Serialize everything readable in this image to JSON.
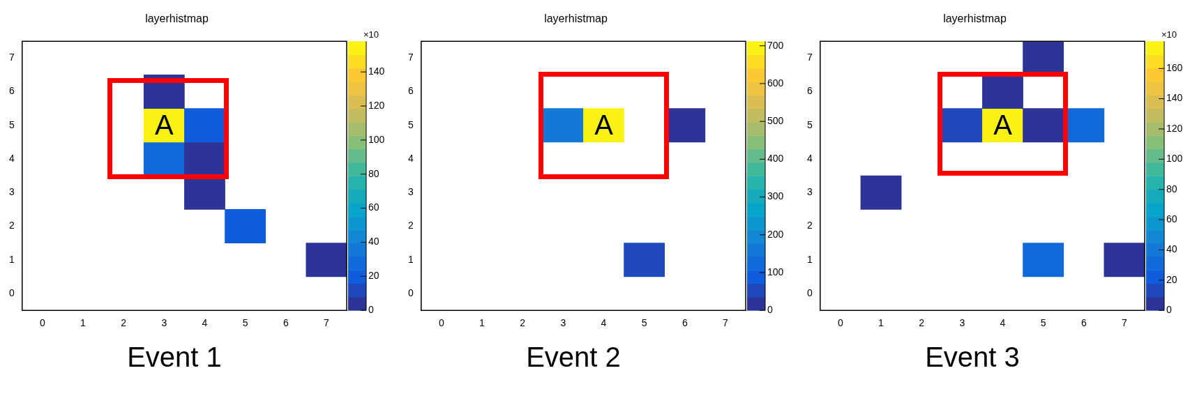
{
  "chart_data": [
    {
      "type": "heatmap",
      "title": "layerhistmap",
      "categories": [
        "0",
        "1",
        "2",
        "3",
        "4",
        "5",
        "6",
        "7"
      ],
      "y_categories": [
        "7",
        "6",
        "5",
        "4",
        "3",
        "2",
        "1",
        "0"
      ],
      "cells": [
        [
          null,
          null,
          null,
          null,
          null,
          null,
          null,
          null
        ],
        [
          null,
          null,
          null,
          4,
          null,
          null,
          null,
          null
        ],
        [
          null,
          null,
          null,
          155,
          18,
          null,
          null,
          null
        ],
        [
          null,
          null,
          null,
          30,
          4,
          null,
          null,
          null
        ],
        [
          null,
          null,
          null,
          null,
          4,
          null,
          null,
          null
        ],
        [
          null,
          null,
          null,
          null,
          null,
          16,
          null,
          null
        ],
        [
          null,
          null,
          null,
          null,
          null,
          null,
          null,
          4
        ],
        [
          null,
          null,
          null,
          null,
          null,
          null,
          null,
          null
        ]
      ],
      "clim": [
        0,
        158
      ],
      "cticks": [
        0,
        20,
        40,
        60,
        80,
        100,
        120,
        140
      ],
      "clabel": "×10",
      "annotations": [
        "A",
        "Event 1"
      ]
    },
    {
      "type": "heatmap",
      "title": "layerhistmap",
      "categories": [
        "0",
        "1",
        "2",
        "3",
        "4",
        "5",
        "6",
        "7"
      ],
      "y_categories": [
        "7",
        "6",
        "5",
        "4",
        "3",
        "2",
        "1",
        "0"
      ],
      "cells": [
        [
          null,
          null,
          null,
          null,
          null,
          null,
          null,
          null
        ],
        [
          null,
          null,
          null,
          null,
          null,
          null,
          null,
          null
        ],
        [
          null,
          null,
          null,
          150,
          705,
          null,
          20,
          null
        ],
        [
          null,
          null,
          null,
          null,
          null,
          null,
          null,
          null
        ],
        [
          null,
          null,
          null,
          null,
          null,
          null,
          null,
          null
        ],
        [
          null,
          null,
          null,
          null,
          null,
          null,
          null,
          null
        ],
        [
          null,
          null,
          null,
          null,
          null,
          55,
          null,
          null
        ],
        [
          null,
          null,
          null,
          null,
          null,
          null,
          null,
          null
        ]
      ],
      "clim": [
        0,
        712
      ],
      "cticks": [
        0,
        100,
        200,
        300,
        400,
        500,
        600,
        700
      ],
      "annotations": [
        "A",
        "Event 2"
      ]
    },
    {
      "type": "heatmap",
      "title": "layerhistmap",
      "categories": [
        "0",
        "1",
        "2",
        "3",
        "4",
        "5",
        "6",
        "7"
      ],
      "y_categories": [
        "7",
        "6",
        "5",
        "4",
        "3",
        "2",
        "1",
        "0"
      ],
      "cells": [
        [
          null,
          null,
          null,
          null,
          null,
          4,
          null,
          null
        ],
        [
          null,
          null,
          null,
          null,
          4,
          null,
          null,
          null
        ],
        [
          null,
          null,
          null,
          15,
          175,
          4,
          30,
          null
        ],
        [
          null,
          null,
          null,
          null,
          null,
          null,
          null,
          null
        ],
        [
          null,
          4,
          null,
          null,
          null,
          null,
          null,
          null
        ],
        [
          null,
          null,
          null,
          null,
          null,
          null,
          null,
          null
        ],
        [
          null,
          null,
          null,
          null,
          null,
          30,
          null,
          4
        ],
        [
          null,
          null,
          null,
          null,
          null,
          null,
          null,
          null
        ]
      ],
      "clim": [
        0,
        178
      ],
      "cticks": [
        0,
        20,
        40,
        60,
        80,
        100,
        120,
        140,
        160
      ],
      "clabel": "×10",
      "annotations": [
        "A",
        "Event 3"
      ]
    }
  ]
}
